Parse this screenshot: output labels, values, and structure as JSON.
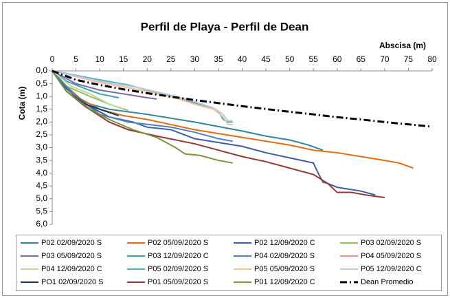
{
  "chart_data": {
    "type": "line",
    "title": "Perfil de Playa - Perfil de Dean",
    "xlabel": "Abscisa (m)",
    "ylabel": "Cota (m)",
    "xlim": [
      0,
      80
    ],
    "xticks": [
      0,
      5,
      10,
      15,
      20,
      25,
      30,
      35,
      40,
      45,
      50,
      55,
      60,
      65,
      70,
      75,
      80
    ],
    "ylim": [
      0,
      6
    ],
    "y_inverted": true,
    "x_axis_position": "top",
    "yticks": [
      {
        "value": 0,
        "label": "0,0"
      },
      {
        "value": 0.5,
        "label": "0,5"
      },
      {
        "value": 1,
        "label": "1,0"
      },
      {
        "value": 1.5,
        "label": "1,5"
      },
      {
        "value": 2,
        "label": "2,0"
      },
      {
        "value": 2.5,
        "label": "2,5"
      },
      {
        "value": 3,
        "label": "3,0"
      },
      {
        "value": 3.5,
        "label": "3,5"
      },
      {
        "value": 4,
        "label": "4,0"
      },
      {
        "value": 4.5,
        "label": "4,5"
      },
      {
        "value": 5,
        "label": "5,0"
      },
      {
        "value": 5.5,
        "label": "5,5"
      },
      {
        "value": 6,
        "label": "6,0"
      }
    ],
    "grid": false,
    "legend": "bottom",
    "series": [
      {
        "name": "P02 02/09/2020 S",
        "color": "#31859c",
        "x": [
          0,
          2,
          5,
          8,
          12,
          20,
          30,
          40,
          45,
          50,
          54,
          57
        ],
        "values": [
          0,
          0.5,
          1.0,
          1.3,
          1.5,
          1.7,
          2.0,
          2.35,
          2.55,
          2.7,
          2.9,
          3.1
        ]
      },
      {
        "name": "P02 05/09/2020 S",
        "color": "#e46c0a",
        "x": [
          0,
          3,
          6,
          10,
          15,
          20,
          30,
          40,
          50,
          55,
          60,
          65,
          70,
          73,
          76
        ],
        "values": [
          0,
          0.6,
          1.1,
          1.5,
          1.75,
          1.9,
          2.3,
          2.6,
          2.9,
          3.1,
          3.2,
          3.35,
          3.5,
          3.6,
          3.8
        ]
      },
      {
        "name": "P02 12/09/2020 C",
        "color": "#3c5ea6",
        "x": [
          0,
          3,
          8,
          12,
          17,
          20,
          25,
          30,
          40,
          45,
          50,
          55,
          56,
          57,
          58,
          60,
          65,
          68
        ],
        "values": [
          0,
          0.7,
          1.4,
          1.8,
          2.0,
          2.2,
          2.3,
          2.65,
          2.95,
          3.2,
          3.4,
          3.6,
          4.0,
          4.35,
          4.4,
          4.55,
          4.7,
          4.85
        ]
      },
      {
        "name": "P03 02/09/2020 S",
        "color": "#9bbb59",
        "x": [
          0,
          3,
          8,
          12,
          16
        ],
        "values": [
          0,
          0.6,
          1.0,
          1.3,
          1.55
        ]
      },
      {
        "name": "P03 05/09/2020 S",
        "color": "#8064a2",
        "x": [
          0,
          5,
          10,
          15,
          20,
          22
        ],
        "values": [
          0,
          0.5,
          0.75,
          0.9,
          1.05,
          1.1
        ]
      },
      {
        "name": "P03 12/09/2020 C",
        "color": "#31a6b8",
        "x": [
          0,
          3,
          7,
          10,
          14
        ],
        "values": [
          0,
          0.4,
          0.7,
          0.9,
          1.05
        ]
      },
      {
        "name": "P04 02/09/2020 S",
        "color": "#4f81bd",
        "x": [
          0,
          5,
          10,
          16,
          25,
          30,
          35,
          38
        ],
        "values": [
          0,
          1.0,
          1.7,
          2.0,
          2.2,
          2.4,
          2.65,
          2.75
        ]
      },
      {
        "name": "P04 05/09/2020 S",
        "color": "#d99694",
        "x": [
          0,
          10,
          20,
          25,
          30,
          34
        ],
        "values": [
          0,
          0.45,
          0.8,
          1.0,
          1.3,
          1.5
        ]
      },
      {
        "name": "P04 12/09/2020 C",
        "color": "#c3d69b",
        "x": [
          0,
          4,
          8,
          12,
          15
        ],
        "values": [
          0,
          0.6,
          0.9,
          1.3,
          1.5
        ]
      },
      {
        "name": "P05 02/09/2020 S",
        "color": "#4bacc6",
        "x": [
          0,
          10,
          16,
          22,
          28,
          33,
          35,
          36,
          37,
          38
        ],
        "values": [
          0,
          0.35,
          0.55,
          0.85,
          1.15,
          1.4,
          1.6,
          1.9,
          2.0,
          2.0
        ]
      },
      {
        "name": "P05 05/09/2020 S",
        "color": "#fac090",
        "x": [
          0,
          10,
          20,
          26,
          30,
          34,
          36,
          37,
          38
        ],
        "values": [
          0,
          0.45,
          0.8,
          1.05,
          1.3,
          1.5,
          1.8,
          2.1,
          2.1
        ]
      },
      {
        "name": "P05 12/09/2020 C",
        "color": "#b9cde5",
        "x": [
          0,
          10,
          18,
          24,
          30,
          34,
          36,
          37,
          38
        ],
        "values": [
          0,
          0.4,
          0.65,
          0.9,
          1.2,
          1.45,
          1.7,
          1.95,
          1.95
        ]
      },
      {
        "name": "PO1 02/09/2020 S",
        "color": "#17375e",
        "x": [
          0,
          3,
          7,
          10,
          14
        ],
        "values": [
          0,
          0.8,
          1.3,
          1.5,
          1.75
        ]
      },
      {
        "name": "P01 05/09/2020 S",
        "color": "#953735",
        "x": [
          0,
          3,
          7,
          12,
          16,
          22,
          30,
          35,
          40,
          45,
          50,
          55,
          58,
          60,
          63,
          66,
          70
        ],
        "values": [
          0,
          0.8,
          1.4,
          2.0,
          2.3,
          2.55,
          2.85,
          3.1,
          3.35,
          3.55,
          3.8,
          4.05,
          4.4,
          4.75,
          4.75,
          4.85,
          4.95
        ]
      },
      {
        "name": "P01 12/09/2020 C",
        "color": "#77933c",
        "x": [
          0,
          3,
          8,
          12,
          17,
          22,
          26,
          28,
          31,
          35,
          38
        ],
        "values": [
          0,
          0.8,
          1.5,
          1.9,
          2.3,
          2.6,
          3.0,
          3.25,
          3.3,
          3.5,
          3.6
        ]
      },
      {
        "name": "Dean Promedio",
        "color": "#000000",
        "dash": "dash-dot",
        "x": [
          0,
          5,
          10,
          15,
          20,
          25,
          30,
          35,
          40,
          45,
          50,
          55,
          60,
          65,
          70,
          75,
          80
        ],
        "values": [
          0,
          0.35,
          0.55,
          0.72,
          0.87,
          1.01,
          1.14,
          1.26,
          1.38,
          1.49,
          1.6,
          1.7,
          1.81,
          1.9,
          2.0,
          2.09,
          2.18
        ]
      }
    ]
  }
}
